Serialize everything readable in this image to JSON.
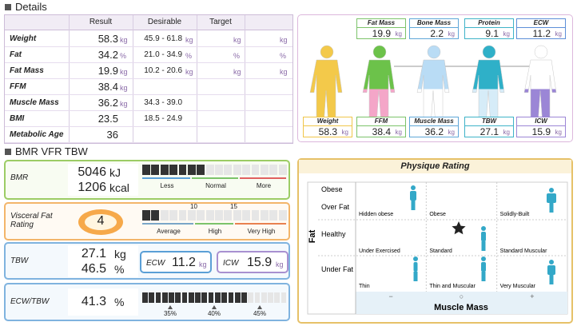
{
  "details": {
    "title": "Details",
    "columns": [
      "Result",
      "Desirable",
      "Target"
    ],
    "rows": [
      {
        "label": "Weight",
        "result": 58.3,
        "result_unit": "kg",
        "desirable": "45.9 - 61.8",
        "desirable_unit": "kg",
        "target_unit": "kg",
        "extra_unit": "kg"
      },
      {
        "label": "Fat",
        "result": 34.2,
        "result_unit": "%",
        "desirable": "21.0 - 34.9",
        "desirable_unit": "%",
        "target_unit": "%",
        "extra_unit": "%"
      },
      {
        "label": "Fat Mass",
        "result": 19.9,
        "result_unit": "kg",
        "desirable": "10.2 - 20.6",
        "desirable_unit": "kg",
        "target_unit": "kg",
        "extra_unit": "kg"
      },
      {
        "label": "FFM",
        "result": 38.4,
        "result_unit": "kg"
      },
      {
        "label": "Muscle Mass",
        "result": 36.2,
        "result_unit": "kg",
        "desirable": "34.3 - 39.0"
      },
      {
        "label": "BMI",
        "result": 23.5,
        "desirable": "18.5 - 24.9"
      },
      {
        "label": "Metabolic Age",
        "result": 36
      }
    ]
  },
  "composition": {
    "top": [
      {
        "label": "Fat Mass",
        "value": 19.9,
        "unit": "kg"
      },
      {
        "label": "Bone Mass",
        "value": 2.2,
        "unit": "kg"
      },
      {
        "label": "Protein",
        "value": 9.1,
        "unit": "kg"
      },
      {
        "label": "ECW",
        "value": 11.2,
        "unit": "kg"
      }
    ],
    "bottom": [
      {
        "label": "Weight",
        "value": 58.3,
        "unit": "kg"
      },
      {
        "label": "FFM",
        "value": 38.4,
        "unit": "kg"
      },
      {
        "label": "Muscle Mass",
        "value": 36.2,
        "unit": "kg"
      },
      {
        "label": "TBW",
        "value": 27.1,
        "unit": "kg"
      },
      {
        "label": "ICW",
        "value": 15.9,
        "unit": "kg"
      }
    ]
  },
  "bmr_section": {
    "title": "BMR VFR TBW",
    "bmr": {
      "label": "BMR",
      "values": [
        {
          "value": 5046,
          "unit": "kJ"
        },
        {
          "value": 1206,
          "unit": "kcal"
        }
      ],
      "scale": [
        "Less",
        "Normal",
        "More"
      ]
    },
    "visceral": {
      "label": "Visceral Fat Rating",
      "value": 4,
      "ticks": [
        10,
        15
      ],
      "scale": [
        "Average",
        "High",
        "Very High"
      ]
    },
    "tbw": {
      "label": "TBW",
      "values": [
        {
          "value": 27.1,
          "unit": "kg"
        },
        {
          "value": 46.5,
          "unit": "%"
        }
      ],
      "ecw": {
        "label": "ECW",
        "value": 11.2,
        "unit": "kg"
      },
      "icw": {
        "label": "ICW",
        "value": 15.9,
        "unit": "kg"
      }
    },
    "ecw_tbw": {
      "label": "ECW/TBW",
      "value": 41.3,
      "unit": "%",
      "ticks": [
        "35%",
        "40%",
        "45%"
      ]
    }
  },
  "physique": {
    "title": "Physique Rating",
    "y_label": "Fat",
    "x_label": "Muscle Mass",
    "rows": [
      "Obese",
      "Over Fat",
      "Healthy",
      "Under Fat"
    ],
    "x_marks": [
      "−",
      "○",
      "+"
    ],
    "cells": [
      [
        "Hidden obese",
        "Obese",
        "Solidly-Built"
      ],
      [
        "Under Exercised",
        "Standard",
        "Standard Muscular"
      ],
      [
        "Thin",
        "Thin and Muscular",
        "Very Muscular"
      ]
    ]
  }
}
